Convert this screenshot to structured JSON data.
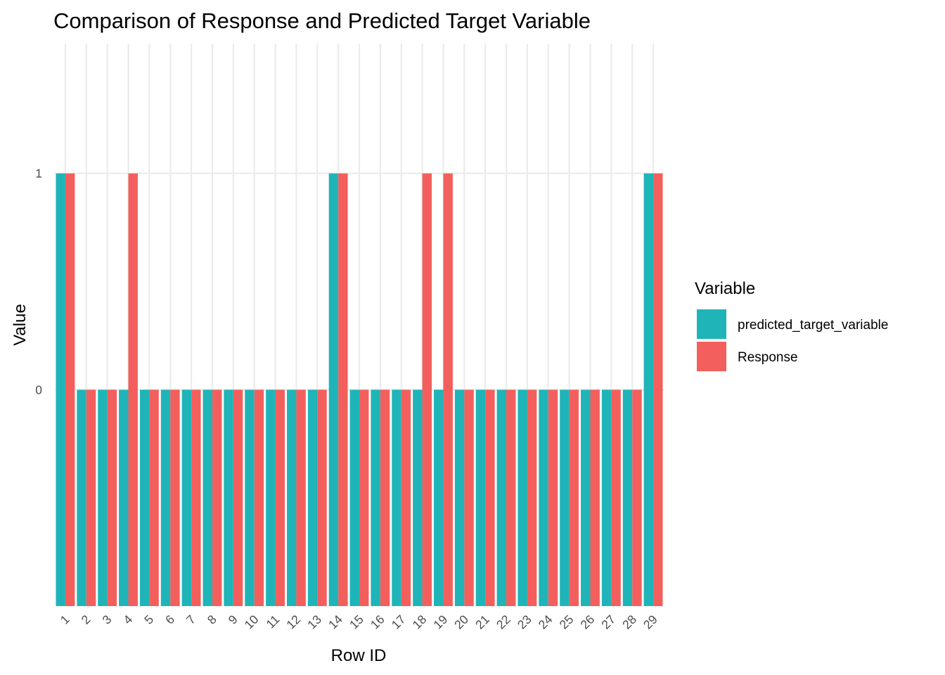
{
  "chart_data": {
    "type": "bar",
    "title": "Comparison of Response and Predicted Target Variable",
    "xlabel": "Row ID",
    "ylabel": "Value",
    "categories": [
      "1",
      "2",
      "3",
      "4",
      "5",
      "6",
      "7",
      "8",
      "9",
      "10",
      "11",
      "12",
      "13",
      "14",
      "15",
      "16",
      "17",
      "18",
      "19",
      "20",
      "21",
      "22",
      "23",
      "24",
      "25",
      "26",
      "27",
      "28",
      "29"
    ],
    "series": [
      {
        "name": "predicted_target_variable",
        "color": "#1fb4b8",
        "values": [
          1,
          0,
          0,
          0,
          0,
          0,
          0,
          0,
          0,
          0,
          0,
          0,
          0,
          1,
          0,
          0,
          0,
          0,
          0,
          0,
          0,
          0,
          0,
          0,
          0,
          0,
          0,
          0,
          1
        ]
      },
      {
        "name": "Response",
        "color": "#f35f5c",
        "values": [
          1,
          0,
          0,
          1,
          0,
          0,
          0,
          0,
          0,
          0,
          0,
          0,
          0,
          1,
          0,
          0,
          0,
          1,
          1,
          0,
          0,
          0,
          0,
          0,
          0,
          0,
          0,
          0,
          1
        ]
      }
    ],
    "ylim": [
      -1,
      1.6
    ],
    "yticks": [
      0,
      1
    ],
    "bar_base": -1,
    "grid": true,
    "legend": {
      "title": "Variable",
      "position": "right"
    }
  }
}
